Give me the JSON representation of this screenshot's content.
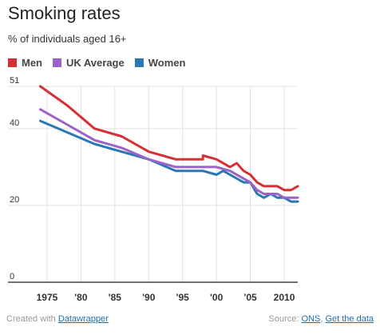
{
  "header": {
    "title": "Smoking rates",
    "subtitle": "% of individuals aged 16+"
  },
  "footer": {
    "created_with": "Created with ",
    "datawrapper_link": "Datawrapper",
    "source_label": "Source: ",
    "source_link": "ONS",
    "separator": ", ",
    "get_data_link": "Get the data"
  },
  "colors": {
    "men": "#d62f35",
    "uk_average": "#9b63c7",
    "women": "#2a77b4",
    "grid": "#e2e2e2",
    "axis": "#444444"
  },
  "chart_data": {
    "type": "line",
    "title": "Smoking rates",
    "ylabel": "% of individuals aged 16+",
    "ylim": [
      0,
      51
    ],
    "xlim": [
      1973,
      2012
    ],
    "y_ticks": [
      0,
      20,
      40,
      51
    ],
    "y_tick_labels": [
      "0",
      "20",
      "40",
      "51"
    ],
    "x_ticks": [
      1975,
      1980,
      1985,
      1990,
      1995,
      2000,
      2005,
      2010
    ],
    "x_tick_labels": [
      "1975",
      "'80",
      "'85",
      "'90",
      "'95",
      "'00",
      "'05",
      "2010"
    ],
    "grid": true,
    "legend_position": "top-left",
    "series": [
      {
        "name": "Men",
        "color": "#d62f35",
        "points": [
          [
            1974,
            51
          ],
          [
            1978,
            46
          ],
          [
            1982,
            40
          ],
          [
            1986,
            38
          ],
          [
            1990,
            34
          ],
          [
            1994,
            32
          ],
          [
            1998,
            32
          ],
          [
            1998,
            33
          ],
          [
            2000,
            32
          ],
          [
            2002,
            30
          ],
          [
            2003,
            31
          ],
          [
            2004,
            29
          ],
          [
            2005,
            28
          ],
          [
            2006,
            26
          ],
          [
            2007,
            25
          ],
          [
            2008,
            25
          ],
          [
            2009,
            25
          ],
          [
            2010,
            24
          ],
          [
            2011,
            24
          ],
          [
            2012,
            25
          ]
        ]
      },
      {
        "name": "UK Average",
        "color": "#9b63c7",
        "points": [
          [
            1974,
            45
          ],
          [
            1978,
            41
          ],
          [
            1982,
            37
          ],
          [
            1986,
            35
          ],
          [
            1990,
            32
          ],
          [
            1994,
            30
          ],
          [
            1998,
            30
          ],
          [
            2000,
            30
          ],
          [
            2002,
            29
          ],
          [
            2004,
            27
          ],
          [
            2005,
            26
          ],
          [
            2006,
            24
          ],
          [
            2007,
            23
          ],
          [
            2008,
            23
          ],
          [
            2009,
            23
          ],
          [
            2010,
            22
          ],
          [
            2011,
            22
          ],
          [
            2012,
            22
          ]
        ]
      },
      {
        "name": "Women",
        "color": "#2a77b4",
        "points": [
          [
            1974,
            42
          ],
          [
            1978,
            39
          ],
          [
            1982,
            36
          ],
          [
            1986,
            34
          ],
          [
            1990,
            32
          ],
          [
            1994,
            29
          ],
          [
            1998,
            29
          ],
          [
            2000,
            28
          ],
          [
            2001,
            29
          ],
          [
            2002,
            28
          ],
          [
            2004,
            26
          ],
          [
            2005,
            26
          ],
          [
            2006,
            23
          ],
          [
            2007,
            22
          ],
          [
            2008,
            23
          ],
          [
            2009,
            22
          ],
          [
            2010,
            22
          ],
          [
            2011,
            21
          ],
          [
            2012,
            21
          ]
        ]
      }
    ]
  }
}
